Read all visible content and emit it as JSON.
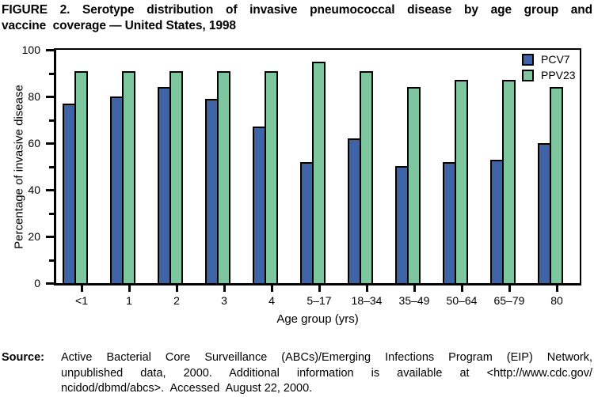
{
  "figure": {
    "title_line1": "FIGURE 2. Serotype distribution of invasive pneumococcal disease by age group and",
    "title_line2": "vaccine  coverage — United States, 1998"
  },
  "chart_data": {
    "type": "bar",
    "title": "Serotype distribution of invasive pneumococcal disease by age group and vaccine coverage — United States, 1998",
    "categories": [
      "<1",
      "1",
      "2",
      "3",
      "4",
      "5–17",
      "18–34",
      "35–49",
      "50–64",
      "65–79",
      "80"
    ],
    "series": [
      {
        "name": "PCV7",
        "color": "#3E63A6",
        "values": [
          77,
          80,
          84,
          79,
          67,
          52,
          62,
          50,
          52,
          53,
          60
        ]
      },
      {
        "name": "PPV23",
        "color": "#7DC6A0",
        "values": [
          91,
          91,
          91,
          91,
          91,
          95,
          91,
          84,
          87,
          87,
          84
        ]
      }
    ],
    "xlabel": "Age group (yrs)",
    "ylabel": "Percentage of invasive disease",
    "ylim": [
      0,
      100
    ],
    "yticks_major": [
      0,
      20,
      40,
      60,
      80,
      100
    ],
    "yticks_minor": [
      10,
      30,
      50,
      70,
      90
    ],
    "legend_position": "top-right",
    "grid": "off",
    "bar_outline_color": "#000000",
    "axis_color": "#000000"
  },
  "source": {
    "label": "Source:",
    "lines": [
      {
        "text": "Active Bacterial Core Surveillance (ABCs)/Emerging Infections Program (EIP) Network,",
        "justify": true
      },
      {
        "text": "unpublished data, 2000. Additional information is available at <http://www.cdc.gov/",
        "justify": true
      },
      {
        "text": "ncidod/dbmd/abcs>.  Accessed  August 22, 2000.",
        "justify": false
      }
    ]
  }
}
